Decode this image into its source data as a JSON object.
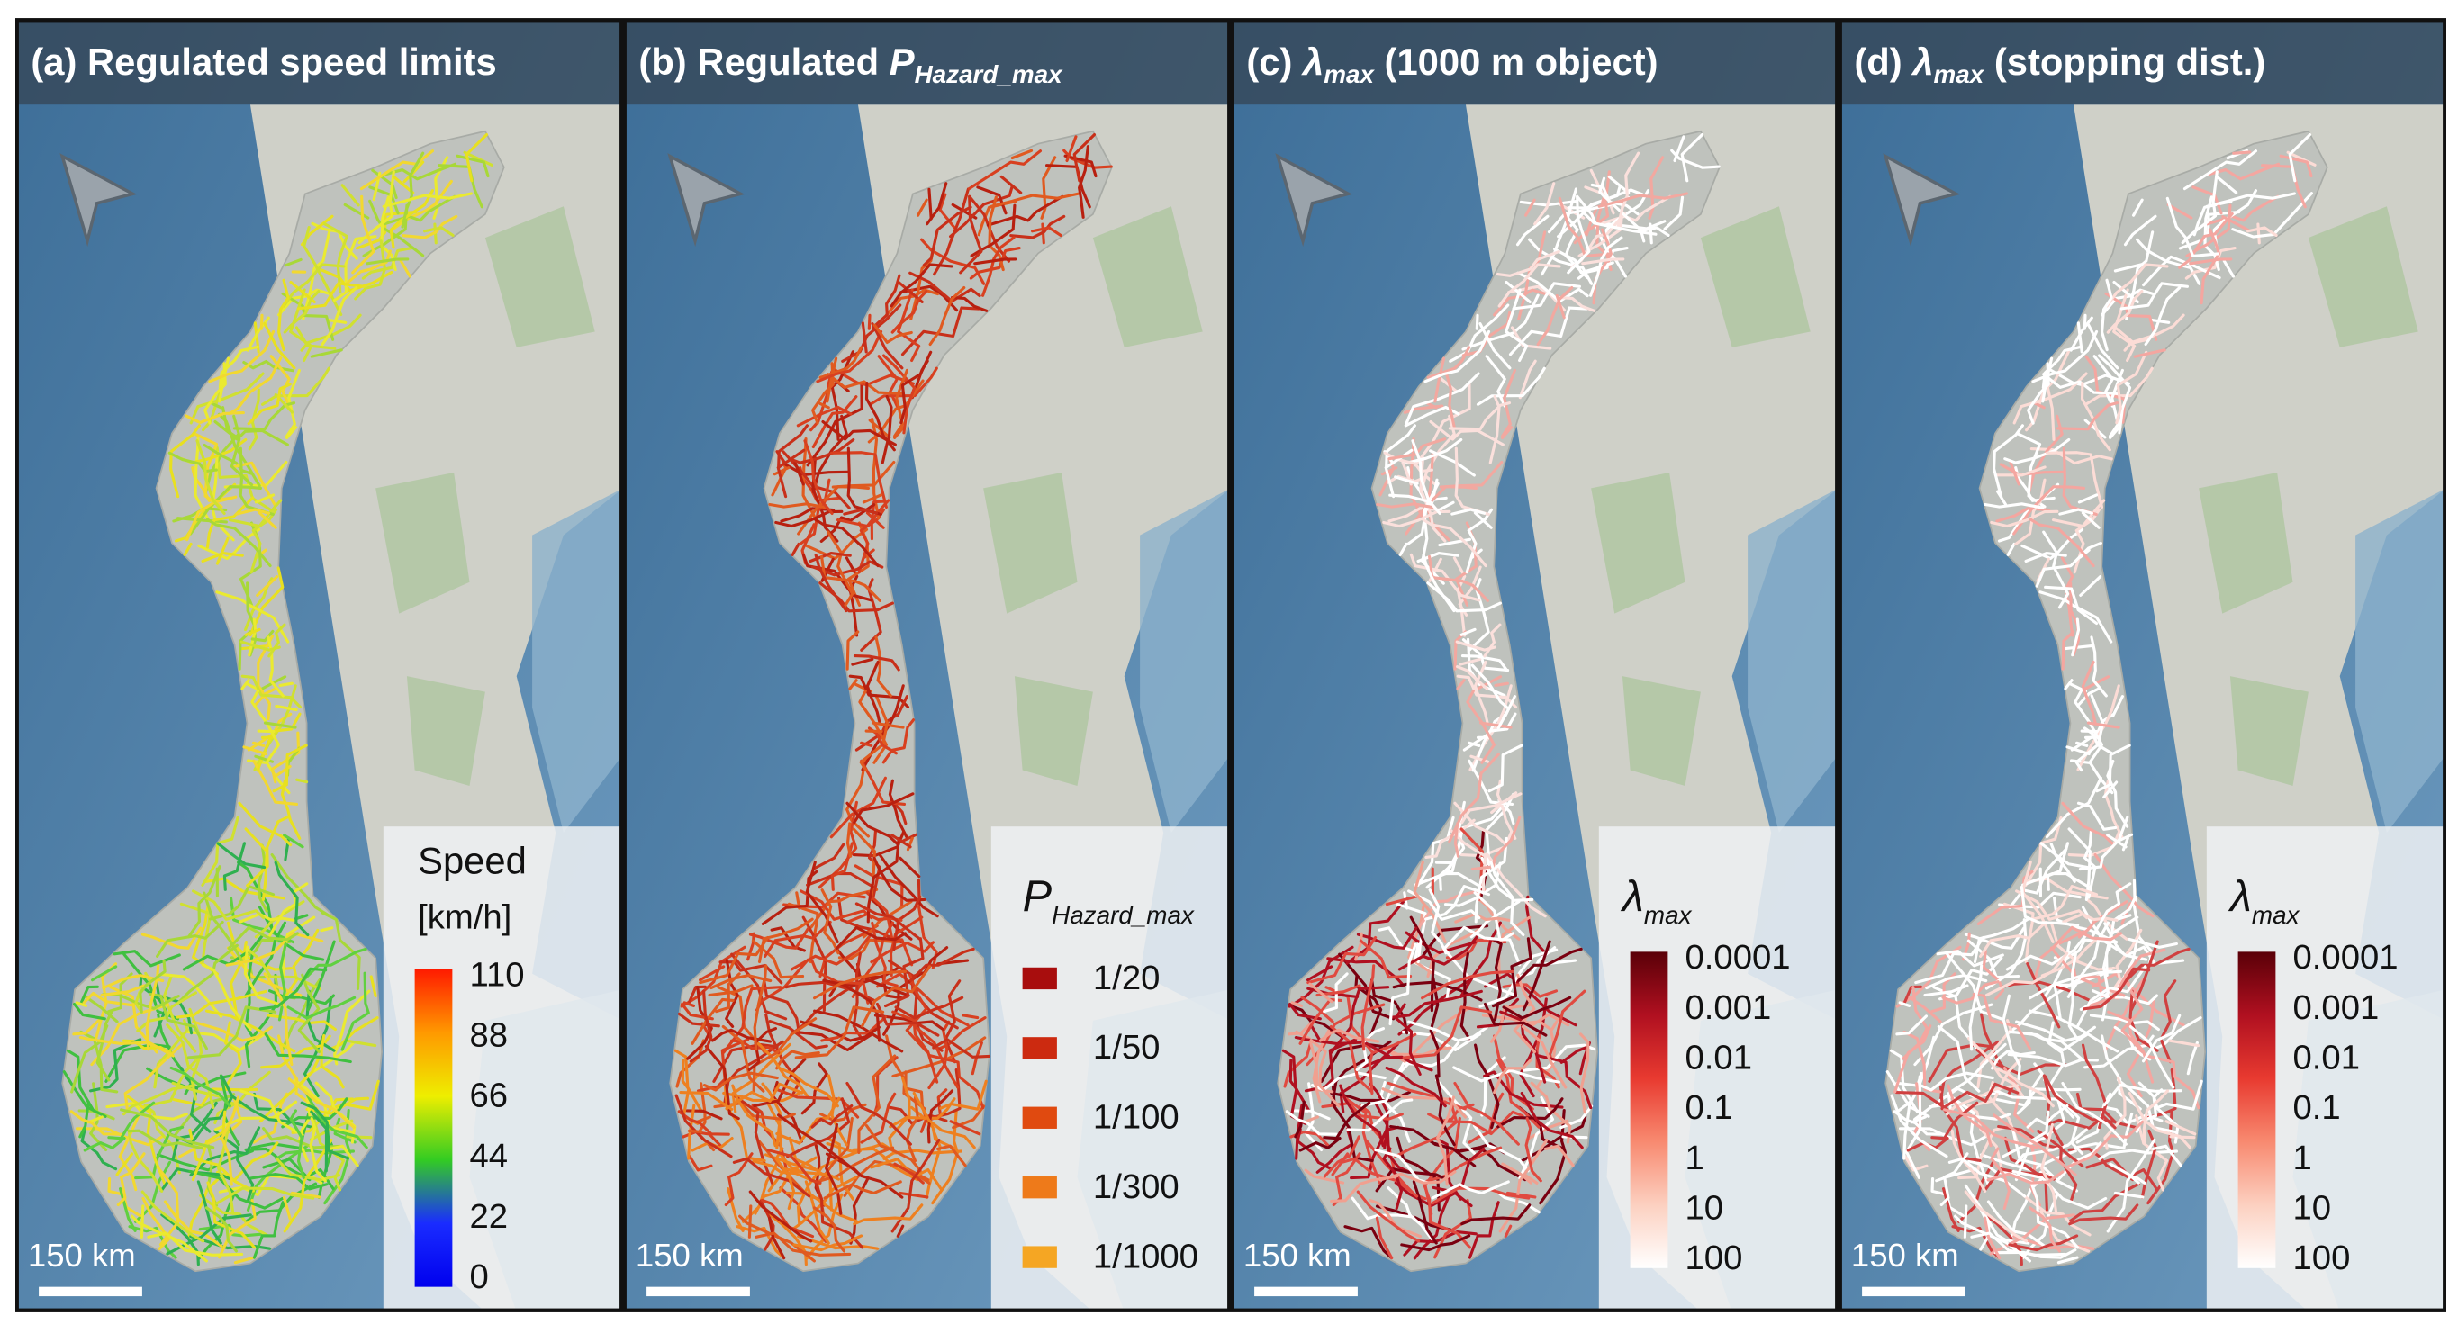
{
  "panels": [
    {
      "title": {
        "prefix": "(a) Regulated speed limits"
      },
      "legend": {
        "title": "Speed",
        "unit": "[km/h]",
        "ticks": [
          "110",
          "88",
          "66",
          "44",
          "22",
          "0"
        ],
        "colors": [
          "#ff1a00",
          "#ff9900",
          "#eeee00",
          "#33cc22",
          "#1a2cff",
          "#0000ee"
        ]
      },
      "scale_bar": "150 km"
    },
    {
      "title": {
        "prefix": "(b) Regulated ",
        "symbol": "P",
        "subscript": "Hazard_max"
      },
      "legend": {
        "symbol": "P",
        "subscript": "Hazard_max",
        "items": [
          {
            "label": "1/20",
            "color": "#a80d0d"
          },
          {
            "label": "1/50",
            "color": "#cc2a10"
          },
          {
            "label": "1/100",
            "color": "#e04a10"
          },
          {
            "label": "1/300",
            "color": "#ee7a1a"
          },
          {
            "label": "1/1000",
            "color": "#f5a623"
          }
        ]
      },
      "scale_bar": "150 km"
    },
    {
      "title": {
        "prefix": "(c) ",
        "symbol": "λ",
        "subscript": "max",
        "suffix": " (1000 m object)"
      },
      "legend": {
        "symbol": "λ",
        "subscript": "max",
        "ticks": [
          "0.0001",
          "0.001",
          "0.01",
          "0.1",
          "1",
          "10",
          "100"
        ],
        "colors": [
          "#5a0008",
          "#b01020",
          "#e83a30",
          "#f88a70",
          "#fcd0c0",
          "#ffffff"
        ]
      },
      "scale_bar": "150 km"
    },
    {
      "title": {
        "prefix": "(d) ",
        "symbol": "λ",
        "subscript": "max",
        "suffix": " (stopping dist.)"
      },
      "legend": {
        "symbol": "λ",
        "subscript": "max",
        "ticks": [
          "0.0001",
          "0.001",
          "0.01",
          "0.1",
          "1",
          "10",
          "100"
        ],
        "colors": [
          "#5a0008",
          "#b01020",
          "#e83a30",
          "#f88a70",
          "#fcd0c0",
          "#ffffff"
        ]
      },
      "scale_bar": "150 km"
    }
  ]
}
